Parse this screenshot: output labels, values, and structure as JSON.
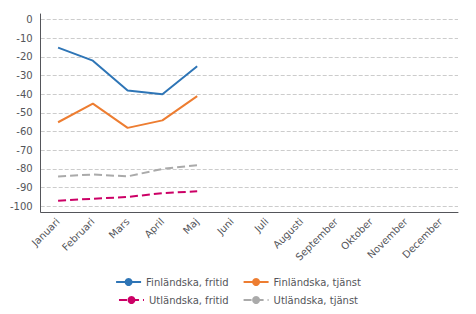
{
  "chart_data": {
    "type": "line",
    "categories": [
      "Januari",
      "Februari",
      "Mars",
      "April",
      "Maj",
      "Juni",
      "Juli",
      "Augusti",
      "September",
      "Oktober",
      "November",
      "December"
    ],
    "series": [
      {
        "name": "Finländska, fritid",
        "color": "#2E75B6",
        "line_style": "solid",
        "values": [
          -15,
          -22,
          -38,
          -40,
          -25,
          null,
          null,
          null,
          null,
          null,
          null,
          null
        ]
      },
      {
        "name": "Finländska, tjänst",
        "color": "#ED7D31",
        "line_style": "solid",
        "values": [
          -55,
          -45,
          -58,
          -54,
          -41,
          null,
          null,
          null,
          null,
          null,
          null,
          null
        ]
      },
      {
        "name": "Utländska, fritid",
        "color": "#CC0066",
        "line_style": "dashed",
        "values": [
          -97,
          -96,
          -95,
          -93,
          -92,
          null,
          null,
          null,
          null,
          null,
          null,
          null
        ]
      },
      {
        "name": "Utländska, tjänst",
        "color": "#AAAAAA",
        "line_style": "dashed",
        "values": [
          -84,
          -83,
          -84,
          -80,
          -78,
          null,
          null,
          null,
          null,
          null,
          null,
          null
        ]
      }
    ],
    "ylim": [
      -103,
      3
    ],
    "yticks": [
      0,
      -10,
      -20,
      -30,
      -40,
      -50,
      -60,
      -70,
      -80,
      -90,
      -100
    ],
    "grid": true,
    "legend": "bottom"
  }
}
